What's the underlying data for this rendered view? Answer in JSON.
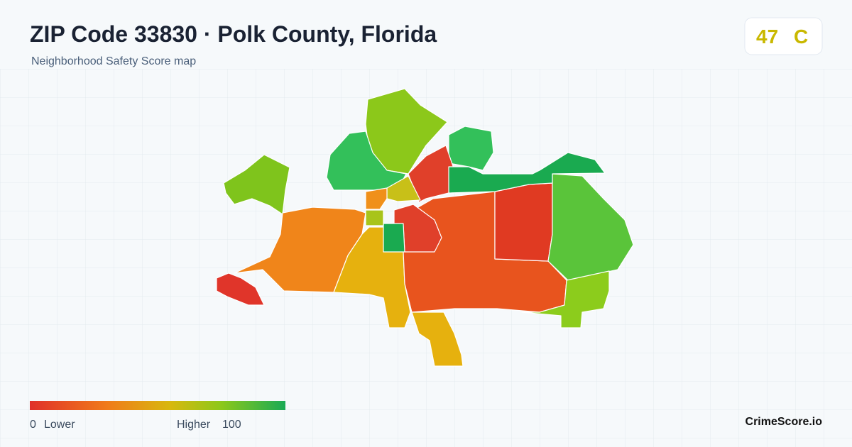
{
  "header": {
    "title": "ZIP Code 33830 · Polk County, Florida",
    "subtitle": "Neighborhood Safety Score map"
  },
  "score": {
    "value": "47",
    "grade": "C"
  },
  "legend": {
    "min": "0",
    "min_label": "Lower",
    "max_label": "Higher",
    "max": "100"
  },
  "brand": "CrimeScore.io"
}
